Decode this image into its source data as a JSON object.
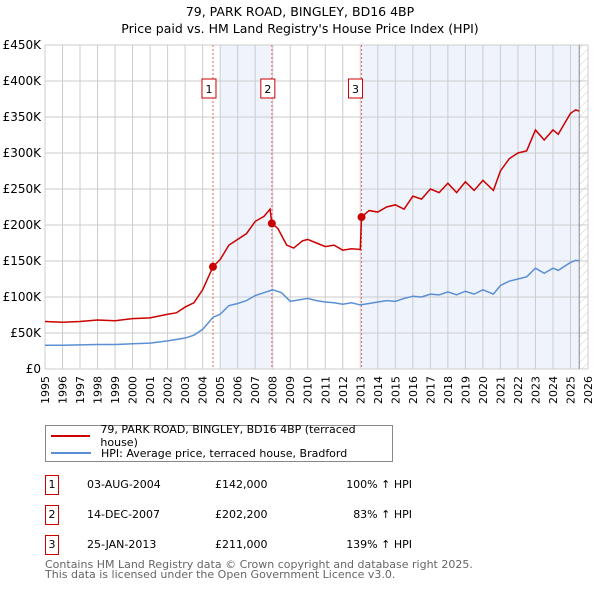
{
  "title": "79, PARK ROAD, BINGLEY, BD16 4BP",
  "subtitle": "Price paid vs. HM Land Registry's House Price Index (HPI)",
  "colors": {
    "property": "#cc0000",
    "hpi": "#5b8fd4",
    "shade": "#eef3fc"
  },
  "chart_data": {
    "type": "line",
    "xlim": [
      1995,
      2026
    ],
    "ylim": [
      0,
      450000
    ],
    "x_ticks": [
      "1995",
      "1996",
      "1997",
      "1998",
      "1999",
      "2000",
      "2001",
      "2002",
      "2003",
      "2004",
      "2005",
      "2006",
      "2007",
      "2008",
      "2009",
      "2010",
      "2011",
      "2012",
      "2013",
      "2014",
      "2015",
      "2016",
      "2017",
      "2018",
      "2019",
      "2020",
      "2021",
      "2022",
      "2023",
      "2024",
      "2025",
      "2026"
    ],
    "y_ticks": [
      "£0",
      "£50K",
      "£100K",
      "£150K",
      "£200K",
      "£250K",
      "£300K",
      "£350K",
      "£400K",
      "£450K"
    ],
    "grid": true,
    "series": [
      {
        "name": "79, PARK ROAD, BINGLEY, BD16 4BP (terraced house)",
        "x": [
          1995,
          1996,
          1997,
          1998,
          1999,
          2000,
          2001,
          2002,
          2002.5,
          2003,
          2003.5,
          2004,
          2004.59,
          2005,
          2005.5,
          2006,
          2006.5,
          2007,
          2007.5,
          2007.85,
          2007.95,
          2008.3,
          2008.8,
          2009.2,
          2009.7,
          2010,
          2010.5,
          2011,
          2011.5,
          2012,
          2012.5,
          2013.0,
          2013.07,
          2013.5,
          2014,
          2014.5,
          2015,
          2015.5,
          2016,
          2016.5,
          2017,
          2017.5,
          2018,
          2018.5,
          2019,
          2019.5,
          2020,
          2020.6,
          2021,
          2021.5,
          2022,
          2022.5,
          2023,
          2023.5,
          2024,
          2024.3,
          2025,
          2025.3,
          2025.5
        ],
        "y": [
          66000,
          65000,
          66000,
          68000,
          67000,
          70000,
          71000,
          76000,
          78000,
          86000,
          92000,
          110000,
          142000,
          152000,
          172000,
          180000,
          188000,
          205000,
          212000,
          222000,
          202200,
          195000,
          172000,
          168000,
          178000,
          180000,
          175000,
          170000,
          172000,
          165000,
          167000,
          166000,
          211000,
          220000,
          218000,
          225000,
          228000,
          222000,
          240000,
          236000,
          250000,
          245000,
          258000,
          245000,
          260000,
          248000,
          262000,
          248000,
          275000,
          292000,
          300000,
          303000,
          332000,
          318000,
          332000,
          326000,
          355000,
          360000,
          358000
        ]
      },
      {
        "name": "HPI: Average price, terraced house, Bradford",
        "x": [
          1995,
          1996,
          1997,
          1998,
          1999,
          2000,
          2001,
          2002,
          2003,
          2003.5,
          2004,
          2004.6,
          2005,
          2005.5,
          2006,
          2006.5,
          2007,
          2007.5,
          2008,
          2008.5,
          2009,
          2009.5,
          2010,
          2010.5,
          2011,
          2011.5,
          2012,
          2012.5,
          2013,
          2013.5,
          2014,
          2014.5,
          2015,
          2015.5,
          2016,
          2016.5,
          2017,
          2017.5,
          2018,
          2018.5,
          2019,
          2019.5,
          2020,
          2020.6,
          2021,
          2021.5,
          2022,
          2022.5,
          2023,
          2023.5,
          2024,
          2024.3,
          2025,
          2025.3,
          2025.5
        ],
        "y": [
          33000,
          33000,
          33500,
          34000,
          34000,
          35000,
          36000,
          39000,
          43000,
          47000,
          55000,
          72000,
          76000,
          88000,
          91000,
          95000,
          102000,
          106000,
          110000,
          106000,
          94000,
          96000,
          98000,
          95000,
          93000,
          92000,
          90000,
          92000,
          89000,
          91000,
          93000,
          95000,
          94000,
          98000,
          101000,
          100000,
          104000,
          103000,
          107000,
          103000,
          108000,
          104000,
          110000,
          104000,
          116000,
          122000,
          125000,
          128000,
          140000,
          133000,
          140000,
          137000,
          148000,
          151000,
          150000
        ]
      }
    ],
    "sales": [
      {
        "label": "1",
        "x": 2004.59,
        "y": 142000
      },
      {
        "label": "2",
        "x": 2007.95,
        "y": 202200
      },
      {
        "label": "3",
        "x": 2013.07,
        "y": 211000
      }
    ],
    "data_end": 2025.5
  },
  "legend": {
    "property": "79, PARK ROAD, BINGLEY, BD16 4BP (terraced house)",
    "hpi": "HPI: Average price, terraced house, Bradford"
  },
  "transactions": [
    {
      "num": "1",
      "date": "03-AUG-2004",
      "price": "£142,000",
      "hpi": "100% ↑ HPI"
    },
    {
      "num": "2",
      "date": "14-DEC-2007",
      "price": "£202,200",
      "hpi": "83% ↑ HPI"
    },
    {
      "num": "3",
      "date": "25-JAN-2013",
      "price": "£211,000",
      "hpi": "139% ↑ HPI"
    }
  ],
  "footer": {
    "line1": "Contains HM Land Registry data © Crown copyright and database right 2025.",
    "line2": "This data is licensed under the Open Government Licence v3.0."
  }
}
